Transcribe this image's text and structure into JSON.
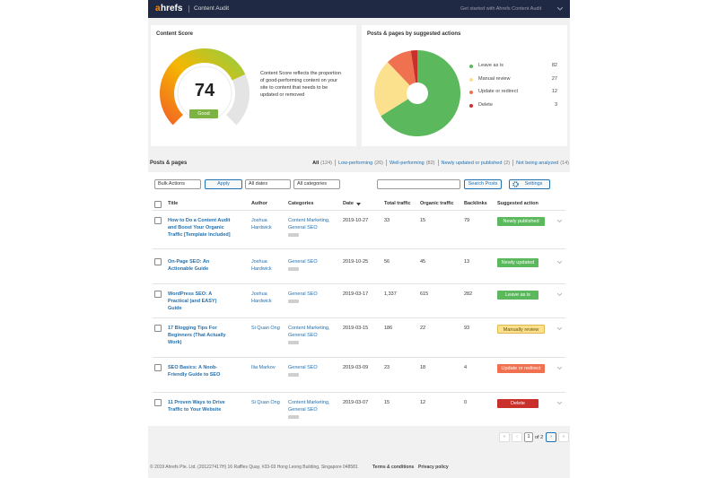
{
  "topbar": {
    "logo_a": "a",
    "logo_rest": "hrefs",
    "breadcrumb": "Content Audit",
    "help": "Get started with Ahrefs Content Audit"
  },
  "content_score": {
    "title": "Content Score",
    "score": 74,
    "range": [
      0,
      100
    ],
    "rating": "Good",
    "description": "Content Score reflects the proportion of good-performing content on your site to content that needs to be updated or removed"
  },
  "suggested_actions": {
    "title": "Posts & pages by suggested actions",
    "slices": [
      {
        "name": "Leave as is",
        "value": 82,
        "color": "#5cb85c"
      },
      {
        "name": "Manual review",
        "value": 27,
        "color": "#fbe08e"
      },
      {
        "name": "Update or redirect",
        "value": 12,
        "color": "#ef7150"
      },
      {
        "name": "Delete",
        "value": 3,
        "color": "#c9302c"
      }
    ]
  },
  "posts": {
    "heading": "Posts & pages",
    "filters": [
      {
        "label": "All",
        "count": "(124)"
      },
      {
        "label": "Low-performing",
        "count": "(26)"
      },
      {
        "label": "Well-performing",
        "count": "(82)"
      },
      {
        "label": "Newly updated or published",
        "count": "(2)"
      },
      {
        "label": "Not being analyzed",
        "count": "(14)"
      }
    ]
  },
  "toolbar": {
    "bulk": "Bulk Actions",
    "apply": "Apply",
    "dates": "All dates",
    "categories": "All categories",
    "search": "Search Posts",
    "settings": "Settings"
  },
  "columns": [
    "Title",
    "Author",
    "Categories",
    "Date",
    "Total traffic",
    "Organic traffic",
    "Backlinks",
    "Suggested action"
  ],
  "rows": [
    {
      "title": "How to Do a Content Audit and Boost Your Organic Traffic [Template Included]",
      "author": "Joshua Hardwick",
      "categories": "Content Marketing, General SEO",
      "date": "2019-10-27",
      "total": 33,
      "organic": 15,
      "backlinks": 79,
      "action": "Newly published",
      "action_color": "#5cb85c"
    },
    {
      "title": "On-Page SEO: An Actionable Guide",
      "author": "Joshua Hardwick",
      "categories": "General SEO",
      "date": "2019-10-25",
      "total": 56,
      "organic": 45,
      "backlinks": 13,
      "action": "Newly updated",
      "action_color": "#5cb85c"
    },
    {
      "title": "WordPress SEO: A Practical (and EASY) Guide",
      "author": "Joshua Hardwick",
      "categories": "General SEO",
      "date": "2019-03-17",
      "total": "1,337",
      "organic": 615,
      "backlinks": 282,
      "action": "Leave as is",
      "action_color": "#5cb85c"
    },
    {
      "title": "17 Blogging Tips For Beginners (That Actually Work)",
      "author": "Si Quan Ong",
      "categories": "Content Marketing, General SEO",
      "date": "2019-03-15",
      "total": 186,
      "organic": 22,
      "backlinks": 93,
      "action": "Manually review",
      "action_color": "#fbe08e"
    },
    {
      "title": "SEO Basics: A Noob-Friendly Guide to SEO",
      "author": "Ilia Markov",
      "categories": "General SEO",
      "date": "2019-03-09",
      "total": 23,
      "organic": 18,
      "backlinks": 4,
      "action": "Update or redirect",
      "action_color": "#ef7150"
    },
    {
      "title": "11 Proven Ways to Drive Traffic to Your Website",
      "author": "Si Quan Ong",
      "categories": "Content Marketing, General SEO",
      "date": "2019-03-07",
      "total": 15,
      "organic": 12,
      "backlinks": 0,
      "action": "Delete",
      "action_color": "#c9302c"
    }
  ],
  "pagination": {
    "first": "«",
    "prev": "‹",
    "page": "1",
    "of": "of 2",
    "next": "›",
    "last": "»"
  },
  "footer": {
    "copyright": "© 2019 Ahrefs Pte. Ltd. (201227417H) 16 Raffles Quay, #33-03 Hong Leong Building, Singapore 048581",
    "terms": "Terms & conditions",
    "privacy": "Privacy policy"
  }
}
